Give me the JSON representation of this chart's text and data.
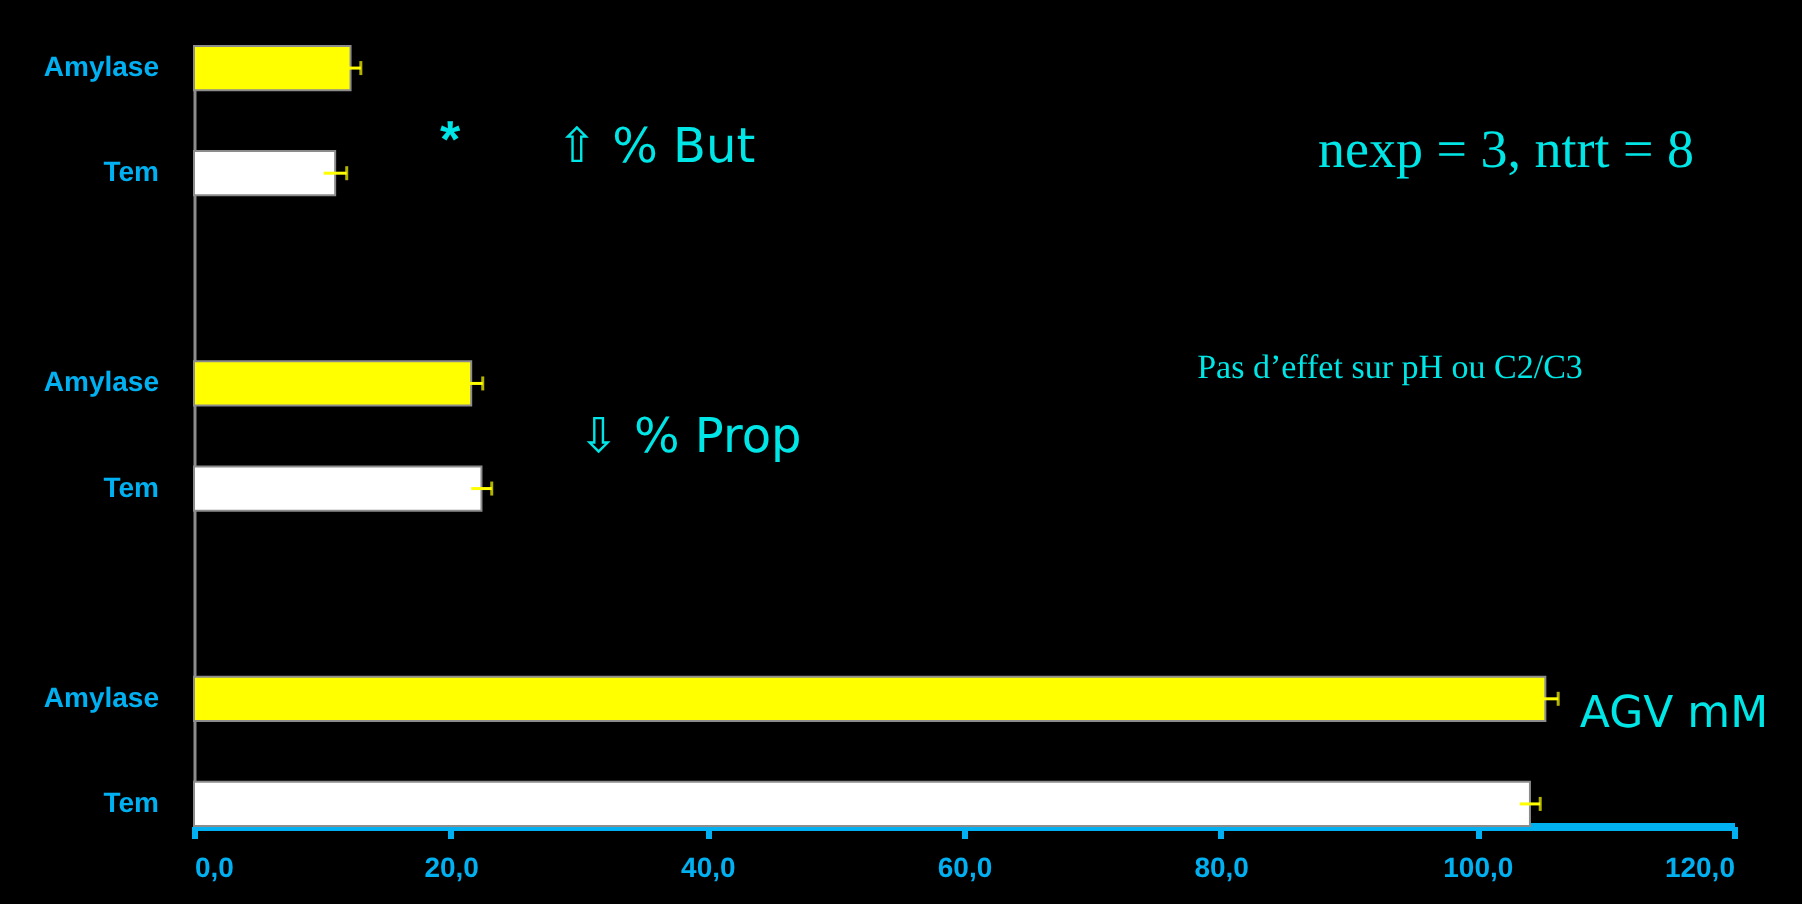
{
  "chart_data": {
    "type": "bar",
    "orientation": "horizontal",
    "categories": [
      "Amylase",
      "Tem",
      "Amylase",
      "Tem",
      "Amylase",
      "Tem"
    ],
    "values": [
      12.2,
      11.0,
      21.6,
      22.4,
      105.3,
      104.1
    ],
    "errors": [
      0.8,
      0.9,
      0.9,
      0.8,
      1.0,
      0.8
    ],
    "colors": [
      "#ffff00",
      "#ffffff",
      "#ffff00",
      "#ffffff",
      "#ffff00",
      "#ffffff"
    ],
    "xlim": [
      0,
      120
    ],
    "xticks": [
      {
        "value": 0,
        "label": "0,0"
      },
      {
        "value": 20,
        "label": "20,0"
      },
      {
        "value": 40,
        "label": "40,0"
      },
      {
        "value": 60,
        "label": "60,0"
      },
      {
        "value": 80,
        "label": "80,0"
      },
      {
        "value": 100,
        "label": "100,0"
      },
      {
        "value": 120,
        "label": "120,0"
      }
    ],
    "annotations": [
      "*",
      "⇧ % But",
      "nexp = 3, ntrt = 8",
      "Pas d’effet sur pH ou C2/C3",
      "⇩ % Prop",
      "AGV mM"
    ]
  }
}
